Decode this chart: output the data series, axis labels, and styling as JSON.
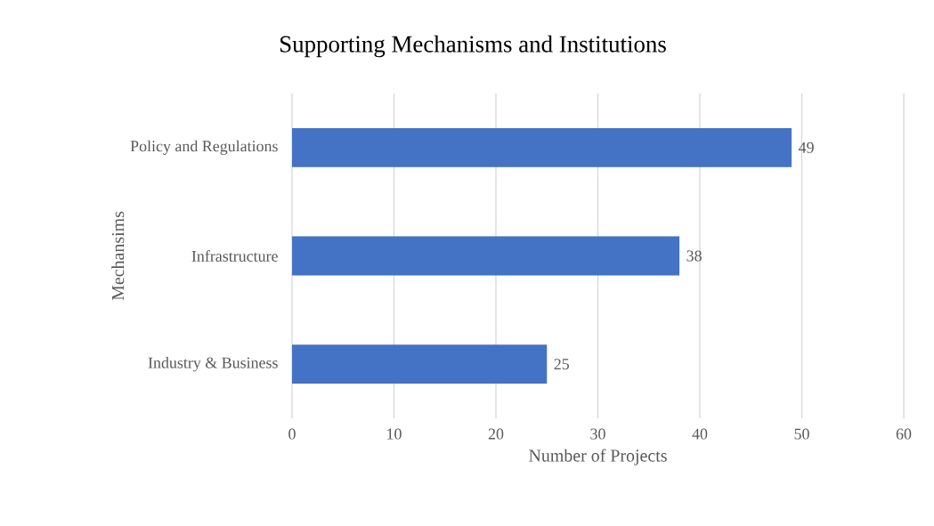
{
  "chart_data": {
    "type": "bar",
    "orientation": "horizontal",
    "title": "Supporting Mechanisms and Institutions",
    "xlabel": "Number of Projects",
    "ylabel": "Mechansims",
    "categories": [
      "Policy and Regulations",
      "Infrastructure",
      "Industry & Business"
    ],
    "values": [
      49,
      38,
      25
    ],
    "color": "#4472c4",
    "data_labels": true,
    "xlim": [
      0,
      60
    ],
    "xticks": [
      0,
      10,
      20,
      30,
      40,
      50,
      60
    ],
    "grid": "x"
  }
}
